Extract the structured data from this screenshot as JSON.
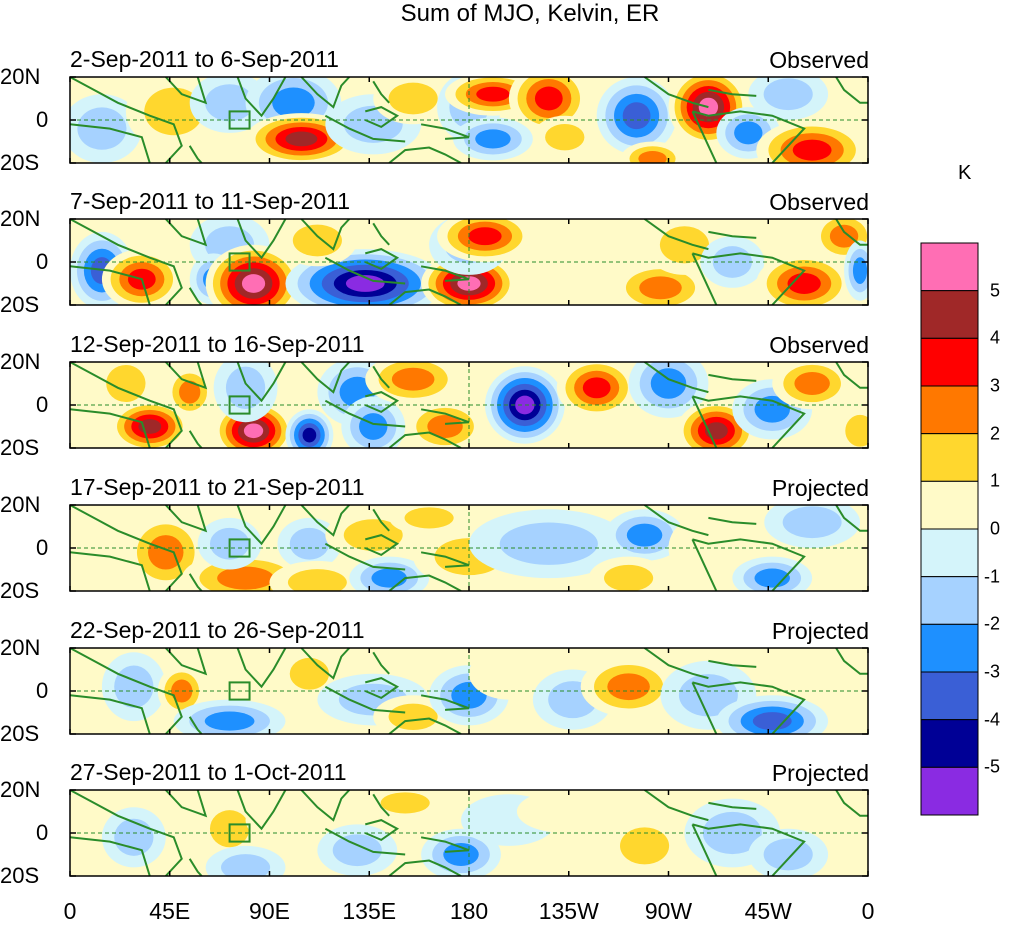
{
  "title": "Sum of MJO, Kelvin, ER",
  "panels": [
    {
      "date_range": "2-Sep-2011 to 6-Sep-2011",
      "type": "Observed"
    },
    {
      "date_range": "7-Sep-2011 to 11-Sep-2011",
      "type": "Observed"
    },
    {
      "date_range": "12-Sep-2011 to 16-Sep-2011",
      "type": "Observed"
    },
    {
      "date_range": "17-Sep-2011 to 21-Sep-2011",
      "type": "Projected"
    },
    {
      "date_range": "22-Sep-2011 to 26-Sep-2011",
      "type": "Projected"
    },
    {
      "date_range": "27-Sep-2011 to 1-Oct-2011",
      "type": "Projected"
    }
  ],
  "lat_labels": [
    "20N",
    "0",
    "20S"
  ],
  "lon_labels": [
    "0",
    "45E",
    "90E",
    "135E",
    "180",
    "135W",
    "90W",
    "45W",
    "0"
  ],
  "colorbar": {
    "unit": "K",
    "labels": [
      "5",
      "4",
      "3",
      "2",
      "1",
      "0",
      "-1",
      "-2",
      "-3",
      "-4",
      "-5"
    ],
    "colors": [
      "#ff6eb4",
      "#a02828",
      "#ff0000",
      "#ff7800",
      "#ffd72e",
      "#fffac8",
      "#d4f4fa",
      "#a6d2ff",
      "#1e90ff",
      "#3a5fd6",
      "#000096",
      "#8a2be2"
    ]
  },
  "colors": {
    "coast": "#2a8c2a",
    "pos1": "#fffac8",
    "pos2": "#ffd72e",
    "pos3": "#ff7800",
    "pos4": "#ff0000",
    "pos5": "#a02828",
    "pos6": "#ff6eb4",
    "neg1": "#d4f4fa",
    "neg2": "#a6d2ff",
    "neg3": "#1e90ff",
    "neg4": "#3a5fd6",
    "neg5": "#000096",
    "neg6": "#8a2be2"
  }
}
